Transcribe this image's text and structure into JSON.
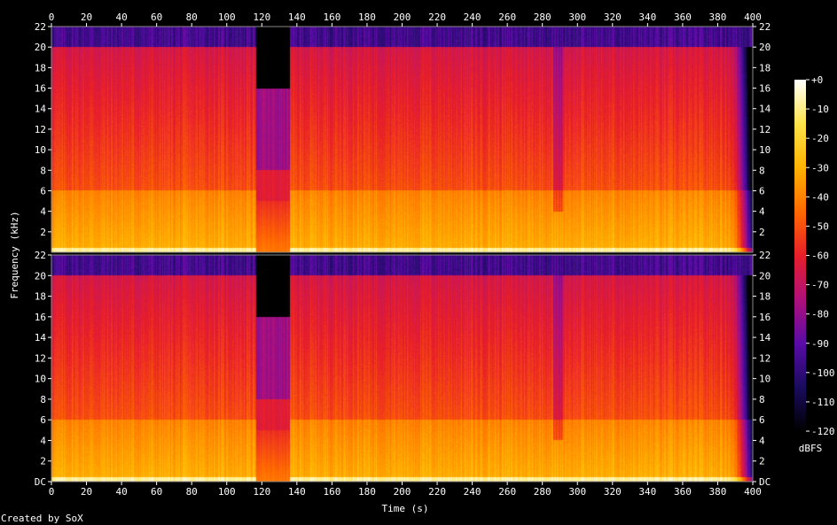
{
  "chart_data": {
    "type": "heatmap",
    "subtype": "spectrogram",
    "title": "",
    "xlabel": "Time (s)",
    "ylabel": "Frequency (kHz)",
    "xlim": [
      0,
      400
    ],
    "ylim": [
      0,
      22
    ],
    "x_ticks": [
      "0",
      "20",
      "40",
      "60",
      "80",
      "100",
      "120",
      "140",
      "160",
      "180",
      "200",
      "220",
      "240",
      "260",
      "280",
      "300",
      "320",
      "340",
      "360",
      "380",
      "400"
    ],
    "y_ticks": [
      "2",
      "4",
      "6",
      "8",
      "10",
      "12",
      "14",
      "16",
      "18",
      "20",
      "22"
    ],
    "y_ticks_bottom": [
      "DC",
      "2",
      "4",
      "6",
      "8",
      "10",
      "12",
      "14",
      "16",
      "18",
      "20",
      "22"
    ],
    "channels": 2,
    "colorbar": {
      "label": "dBFS",
      "range": [
        -120,
        0
      ],
      "ticks": [
        "+0",
        "-10",
        "-20",
        "-30",
        "-40",
        "-50",
        "-60",
        "-70",
        "-80",
        "-90",
        "-100",
        "-110",
        "-120"
      ],
      "colors": [
        "#000000",
        "#1a0b5e",
        "#5a0ba8",
        "#b0107a",
        "#e81e2a",
        "#ff6a00",
        "#ffb300",
        "#ffe44a",
        "#ffffff"
      ]
    },
    "features": {
      "main_cutoff_khz": 20,
      "gap_start_s": 117,
      "gap_end_s": 136,
      "gap_cutoff_khz": 16,
      "fade_out_start_s": 385,
      "end_s": 400
    }
  },
  "footer": {
    "credit": "Created by SoX"
  }
}
